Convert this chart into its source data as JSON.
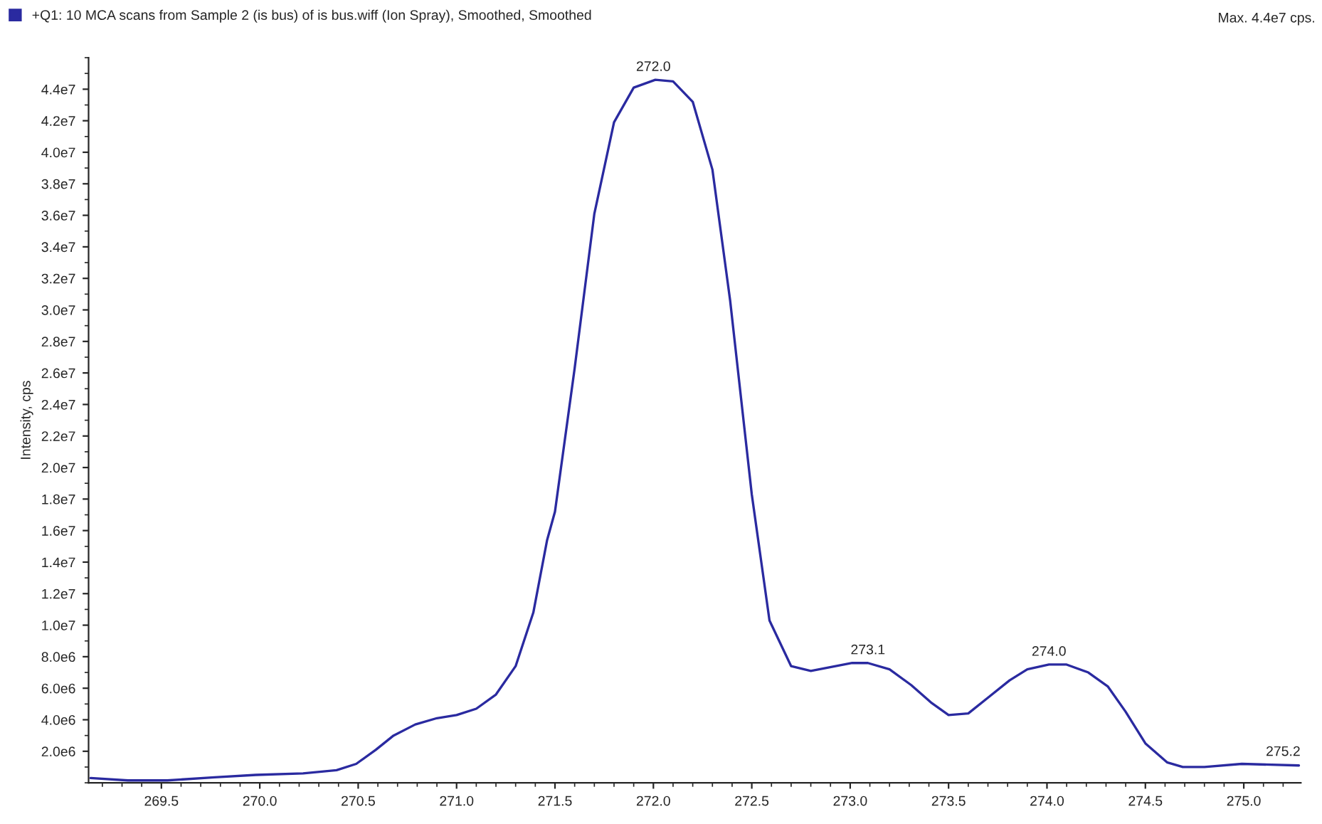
{
  "chart_data": {
    "type": "line",
    "ylabel": "Intensity, cps",
    "legend": "top left",
    "annotations": [
      {
        "text": "272.0",
        "x": 272.0,
        "y": 44600000
      },
      {
        "text": "273.1",
        "x": 273.09,
        "y": 7600000
      },
      {
        "text": "274.0",
        "x": 274.01,
        "y": 7500000
      },
      {
        "text": "275.2",
        "x": 275.2,
        "y": 1150000
      },
      "Max. 4.4e7 cps."
    ],
    "xlim": [
      269.13,
      275.29
    ],
    "ylim": [
      0,
      46000000
    ],
    "xticks": [
      {
        "value": 269.5,
        "label": "269.5"
      },
      {
        "value": 270.0,
        "label": "270.0"
      },
      {
        "value": 270.5,
        "label": "270.5"
      },
      {
        "value": 271.0,
        "label": "271.0"
      },
      {
        "value": 271.5,
        "label": "271.5"
      },
      {
        "value": 272.0,
        "label": "272.0"
      },
      {
        "value": 272.5,
        "label": "272.5"
      },
      {
        "value": 273.0,
        "label": "273.0"
      },
      {
        "value": 273.5,
        "label": "273.5"
      },
      {
        "value": 274.0,
        "label": "274.0"
      },
      {
        "value": 274.5,
        "label": "274.5"
      },
      {
        "value": 275.0,
        "label": "275.0"
      }
    ],
    "yticks": [
      {
        "value": 2000000,
        "label": "2.0e6"
      },
      {
        "value": 4000000,
        "label": "4.0e6"
      },
      {
        "value": 6000000,
        "label": "6.0e6"
      },
      {
        "value": 8000000,
        "label": "8.0e6"
      },
      {
        "value": 10000000,
        "label": "1.0e7"
      },
      {
        "value": 12000000,
        "label": "1.2e7"
      },
      {
        "value": 14000000,
        "label": "1.4e7"
      },
      {
        "value": 16000000,
        "label": "1.6e7"
      },
      {
        "value": 18000000,
        "label": "1.8e7"
      },
      {
        "value": 20000000,
        "label": "2.0e7"
      },
      {
        "value": 22000000,
        "label": "2.2e7"
      },
      {
        "value": 24000000,
        "label": "2.4e7"
      },
      {
        "value": 26000000,
        "label": "2.6e7"
      },
      {
        "value": 28000000,
        "label": "2.8e7"
      },
      {
        "value": 30000000,
        "label": "3.0e7"
      },
      {
        "value": 32000000,
        "label": "3.2e7"
      },
      {
        "value": 34000000,
        "label": "3.4e7"
      },
      {
        "value": 36000000,
        "label": "3.6e7"
      },
      {
        "value": 38000000,
        "label": "3.8e7"
      },
      {
        "value": 40000000,
        "label": "4.0e7"
      },
      {
        "value": 42000000,
        "label": "4.2e7"
      },
      {
        "value": 44000000,
        "label": "4.4e7"
      }
    ],
    "grid": false,
    "marker": "none",
    "line_style": "solid",
    "series": [
      {
        "name": "+Q1: 10 MCA scans from Sample 2 (is bus) of is bus.wiff (Ion Spray), Smoothed, Smoothed",
        "color": "#2a2aa0",
        "x": [
          269.14,
          269.33,
          269.53,
          269.77,
          269.98,
          270.22,
          270.39,
          270.49,
          270.59,
          270.68,
          270.79,
          270.9,
          271.0,
          271.1,
          271.2,
          271.3,
          271.39,
          271.46,
          271.5,
          271.6,
          271.7,
          271.8,
          271.9,
          272.01,
          272.1,
          272.2,
          272.3,
          272.39,
          272.5,
          272.59,
          272.7,
          272.8,
          273.01,
          273.09,
          273.2,
          273.31,
          273.41,
          273.5,
          273.6,
          273.7,
          273.81,
          273.9,
          274.01,
          274.1,
          274.21,
          274.31,
          274.4,
          274.5,
          274.61,
          274.69,
          274.8,
          274.99,
          275.28
        ],
        "values": [
          300000,
          150000,
          150000,
          350000,
          500000,
          600000,
          800000,
          1200000,
          2100000,
          3000000,
          3700000,
          4100000,
          4300000,
          4700000,
          5600000,
          7400000,
          10800000,
          15400000,
          17200000,
          26300000,
          36100000,
          41900000,
          44100000,
          44600000,
          44500000,
          43200000,
          38900000,
          30600000,
          18300000,
          10300000,
          7400000,
          7100000,
          7600000,
          7600000,
          7200000,
          6200000,
          5100000,
          4300000,
          4400000,
          5400000,
          6500000,
          7200000,
          7500000,
          7500000,
          7000000,
          6100000,
          4500000,
          2500000,
          1300000,
          1000000,
          1000000,
          1200000,
          1100000
        ]
      }
    ]
  }
}
